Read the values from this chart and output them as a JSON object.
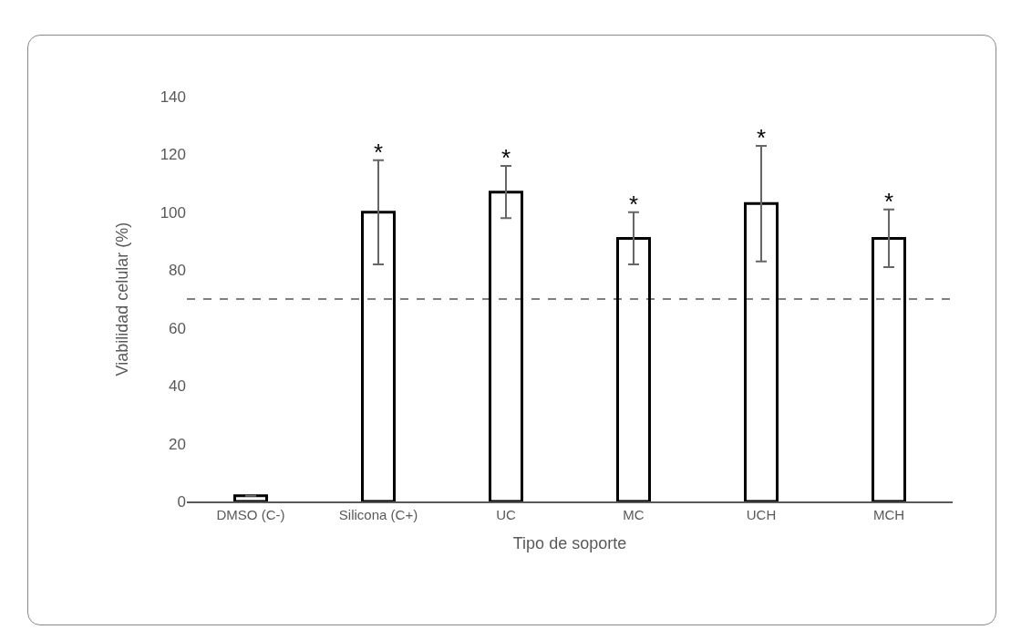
{
  "chart_data": {
    "type": "bar",
    "xlabel": "Tipo de soporte",
    "ylabel": "Viabilidad celular (%)",
    "categories": [
      "DMSO (C-)",
      "Silicona (C+)",
      "UC",
      "MC",
      "UCH",
      "MCH"
    ],
    "values": [
      2,
      100,
      107,
      91,
      103,
      91
    ],
    "errors": [
      null,
      18,
      9,
      9,
      20,
      10
    ],
    "color": "#ffffff",
    "ylim": [
      0,
      140
    ],
    "yticks": [
      0,
      20,
      40,
      60,
      80,
      100,
      120,
      140
    ],
    "grid": false,
    "ref_lines": [
      {
        "axis": "y",
        "value": 70,
        "line_style": "dashed",
        "color": "#000000"
      }
    ],
    "annotations": [
      {
        "text": "*",
        "x": "Silicona (C+)",
        "y": 118
      },
      {
        "text": "*",
        "x": "UC",
        "y": 116
      },
      {
        "text": "*",
        "x": "MC",
        "y": 100
      },
      {
        "text": "*",
        "x": "UCH",
        "y": 123
      },
      {
        "text": "*",
        "x": "MCH",
        "y": 101
      }
    ]
  }
}
